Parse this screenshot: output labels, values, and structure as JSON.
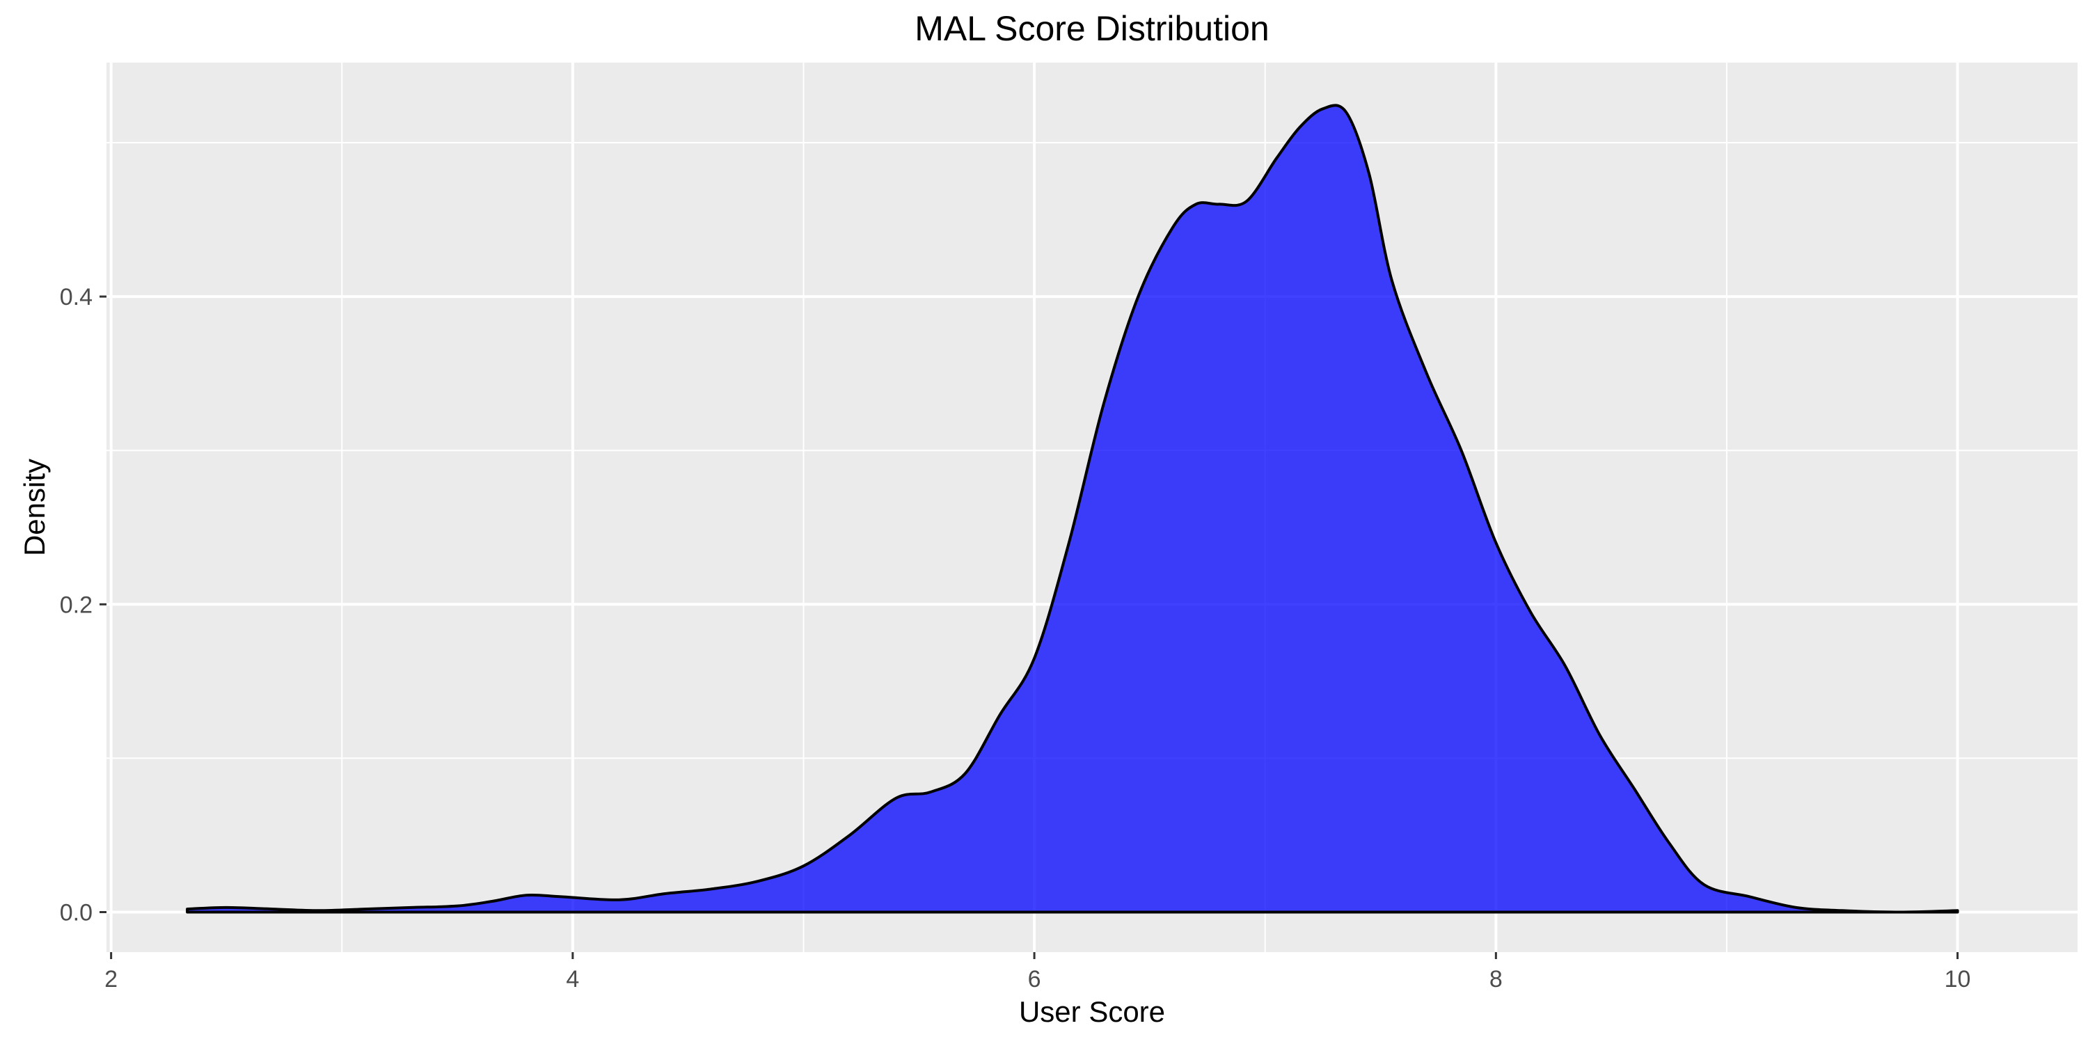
{
  "chart_data": {
    "type": "area",
    "title": "MAL Score Distribution",
    "xlabel": "User Score",
    "ylabel": "Density",
    "xlim": [
      1.98,
      10.52
    ],
    "ylim": [
      -0.026,
      0.552
    ],
    "x_ticks": [
      2,
      4,
      6,
      8,
      10
    ],
    "x_tick_labels": [
      "2",
      "4",
      "6",
      "8",
      "10"
    ],
    "y_ticks": [
      0.0,
      0.2,
      0.4
    ],
    "y_tick_labels": [
      "0.0",
      "0.2",
      "0.4"
    ],
    "x_minor_ticks": [
      3,
      5,
      7,
      9
    ],
    "y_minor_ticks": [
      0.1,
      0.3,
      0.5
    ],
    "grid": true,
    "legend": "none",
    "colors": {
      "fill": "#0000FF",
      "outline": "#000000",
      "panel": "#EBEBEB",
      "grid": "#FFFFFF"
    },
    "series": [
      {
        "x": [
          2.33,
          2.5,
          2.7,
          2.9,
          3.1,
          3.3,
          3.5,
          3.65,
          3.8,
          3.95,
          4.2,
          4.4,
          4.6,
          4.8,
          5.0,
          5.2,
          5.4,
          5.55,
          5.7,
          5.85,
          6.0,
          6.15,
          6.3,
          6.45,
          6.6,
          6.7,
          6.8,
          6.92,
          7.05,
          7.15,
          7.25,
          7.35,
          7.45,
          7.55,
          7.7,
          7.85,
          8.0,
          8.15,
          8.3,
          8.45,
          8.6,
          8.75,
          8.9,
          9.1,
          9.3,
          9.5,
          9.75,
          10.0
        ],
        "y": [
          0.002,
          0.003,
          0.002,
          0.001,
          0.002,
          0.003,
          0.004,
          0.007,
          0.011,
          0.01,
          0.008,
          0.012,
          0.015,
          0.02,
          0.03,
          0.05,
          0.074,
          0.078,
          0.09,
          0.128,
          0.165,
          0.24,
          0.33,
          0.4,
          0.445,
          0.46,
          0.46,
          0.462,
          0.49,
          0.51,
          0.522,
          0.52,
          0.48,
          0.41,
          0.35,
          0.3,
          0.24,
          0.195,
          0.16,
          0.115,
          0.08,
          0.045,
          0.018,
          0.01,
          0.003,
          0.001,
          0.0,
          0.001
        ]
      }
    ]
  }
}
